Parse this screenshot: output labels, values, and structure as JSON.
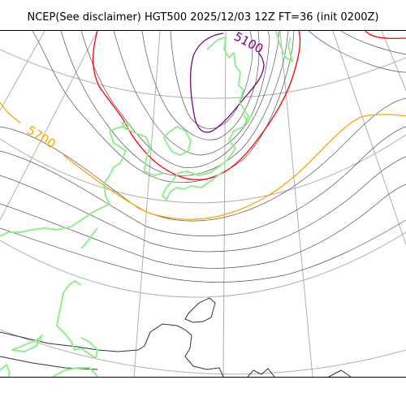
{
  "title": "NCEP(See disclaimer) HGT500 2025/12/03 12Z FT=36 (init 0200Z)",
  "contour_labels": {
    "c5700": "5700",
    "c5100": "5100"
  },
  "colors": {
    "coastline": "#90ee90",
    "contour_5100": "#800080",
    "contour_5400": "#ff0000",
    "contour_5700": "#ffa500",
    "contour_other": "#555555",
    "graticule": "#b0b0b0",
    "coast_outline": "#333333"
  }
}
